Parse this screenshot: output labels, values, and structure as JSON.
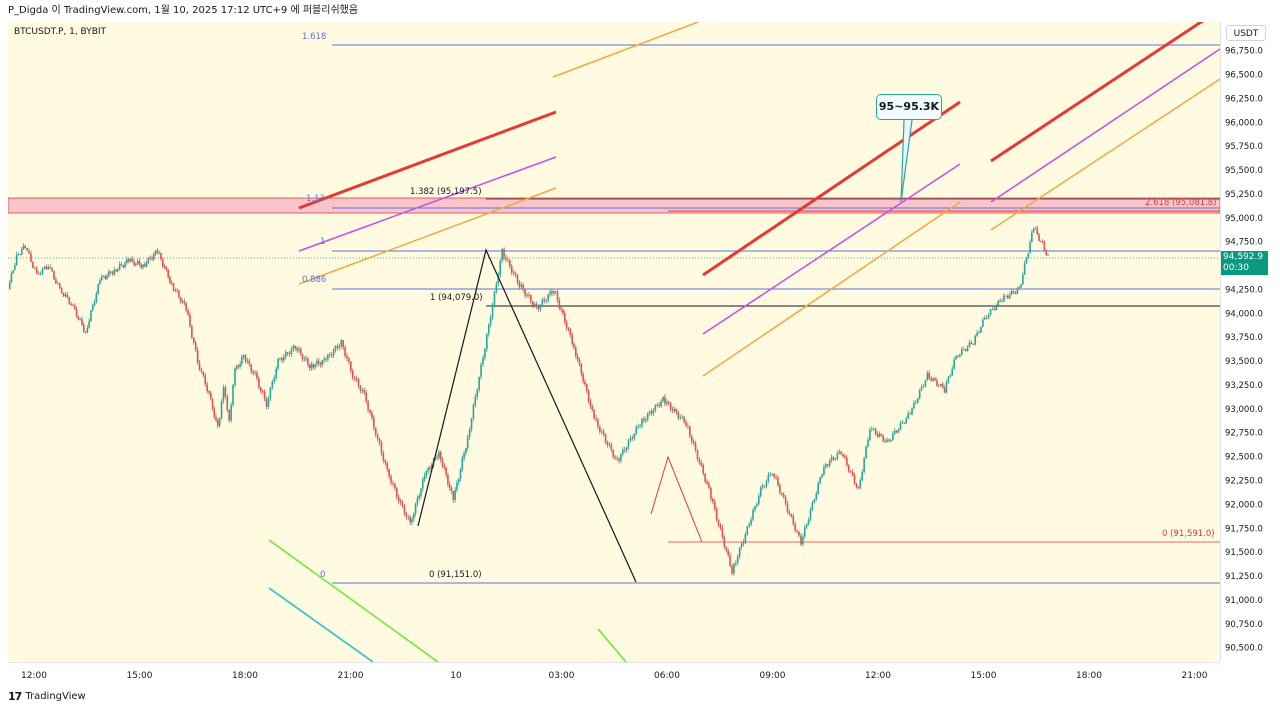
{
  "header": {
    "author_line": "P_Digda 이 TradingView.com, 1월 10, 2025 17:12 UTC+9 에 퍼블리쉬했음"
  },
  "symbol": {
    "label": "BTCUSDT.P, 1, BYBIT"
  },
  "currency": "USDT",
  "brand": {
    "logo": "17",
    "name": "TradingView"
  },
  "last_price": {
    "value": "94,592.9",
    "countdown": "00:30",
    "color": "#089981"
  },
  "callout": {
    "text": "95~95.3K"
  },
  "colors": {
    "background": "#fffae0",
    "zone_fill": "#f7c6cc",
    "red": "#e53935",
    "purple": "#c34ef0",
    "orange": "#f5a742",
    "green": "#7ee84a",
    "teal": "#3cc6c6",
    "fib_blue": "#5b73d8",
    "candle_up": "#26a69a",
    "candle_down": "#d9534f"
  },
  "annotations": {
    "fib_1618": "1.618",
    "fib_113": "1.13",
    "fib_1": "1",
    "fib_0886": "0.886",
    "fib_0": "0",
    "ext_1382": "1.382 (95,197.5)",
    "ext_2618": "2.618 (95,081.8)",
    "pt_1": "1 (94,079.0)",
    "pt_0a": "0 (91,151.0)",
    "pt_0b": "0 (91,591.0)"
  },
  "chart_data": {
    "type": "line",
    "title": "",
    "y_ticks": [
      "96,750.0",
      "96,500.0",
      "96,250.0",
      "96,000.0",
      "95,750.0",
      "95,500.0",
      "95,250.0",
      "95,000.0",
      "94,750.0",
      "94,500.0",
      "94,250.0",
      "94,000.0",
      "93,750.0",
      "93,500.0",
      "93,250.0",
      "93,000.0",
      "92,750.0",
      "92,500.0",
      "92,250.0",
      "92,000.0",
      "91,750.0",
      "91,500.0",
      "91,250.0",
      "91,000.0",
      "90,750.0",
      "90,500.0"
    ],
    "x_ticks": [
      "12:00",
      "15:00",
      "18:00",
      "21:00",
      "10",
      "03:00",
      "06:00",
      "09:00",
      "12:00",
      "15:00",
      "18:00",
      "21:00"
    ],
    "ylim": [
      90350,
      97050
    ],
    "series": [
      {
        "x": [
          0,
          3,
          6,
          10,
          14,
          18,
          22,
          27,
          32,
          37,
          42,
          47,
          52,
          57,
          62,
          66,
          70,
          73,
          75,
          77,
          79,
          82,
          86,
          90,
          94,
          100,
          105,
          110,
          116,
          120,
          124,
          128,
          132,
          136,
          140,
          145,
          150,
          155,
          160,
          166,
          172,
          178,
          184,
          190,
          197,
          204,
          212,
          220,
          228,
          236,
          244,
          252,
          258,
          262,
          266,
          270,
          276,
          284,
          290,
          296,
          300,
          306,
          314,
          320,
          326,
          330,
          336,
          340,
          346,
          352,
          357,
          362
        ],
        "y": [
          94250,
          94600,
          94700,
          94400,
          94500,
          94250,
          94100,
          93800,
          94350,
          94450,
          94550,
          94500,
          94650,
          94300,
          94050,
          93500,
          93150,
          92800,
          93200,
          92900,
          93400,
          93550,
          93350,
          93050,
          93500,
          93650,
          93450,
          93500,
          93700,
          93350,
          93150,
          92750,
          92350,
          92050,
          91800,
          92300,
          92550,
          92050,
          92700,
          93650,
          94650,
          94300,
          94050,
          94250,
          93650,
          92900,
          92450,
          92850,
          93100,
          92850,
          92150,
          91300,
          91800,
          92150,
          92350,
          92050,
          91600,
          92400,
          92550,
          92150,
          92800,
          92650,
          92950,
          93350,
          93200,
          93550,
          93700,
          93950,
          94150,
          94250,
          94900,
          94592.9
        ]
      }
    ]
  }
}
